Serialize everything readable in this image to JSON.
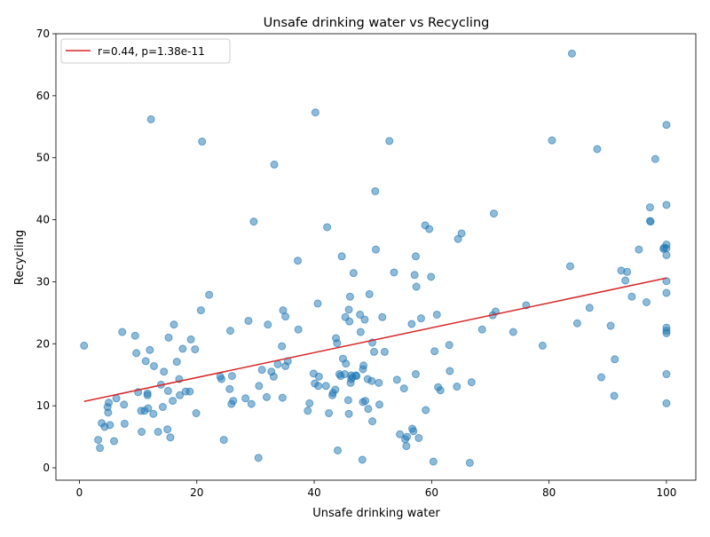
{
  "chart_data": {
    "type": "scatter",
    "title": "Unsafe drinking water vs Recycling",
    "xlabel": "Unsafe drinking water",
    "ylabel": "Recycling",
    "xlim": [
      -4,
      105
    ],
    "ylim": [
      -2,
      70
    ],
    "x_ticks": [
      0,
      20,
      40,
      60,
      80,
      100
    ],
    "y_ticks": [
      0,
      10,
      20,
      30,
      40,
      50,
      60,
      70
    ],
    "grid": false,
    "legend_position": "top-left",
    "point_color": "#1f77b4",
    "line_color": "#d62728",
    "fit_line": {
      "label": "r=0.44, p=1.38e-11",
      "x": [
        0.8,
        100
      ],
      "y": [
        10.7,
        30.6
      ]
    },
    "points": [
      [
        0.8,
        19.7
      ],
      [
        3.2,
        4.5
      ],
      [
        3.5,
        3.2
      ],
      [
        3.8,
        7.2
      ],
      [
        4.3,
        6.6
      ],
      [
        4.8,
        9.8
      ],
      [
        4.9,
        8.9
      ],
      [
        5.0,
        10.5
      ],
      [
        5.2,
        6.9
      ],
      [
        5.9,
        4.3
      ],
      [
        6.3,
        11.2
      ],
      [
        7.3,
        21.9
      ],
      [
        7.6,
        10.2
      ],
      [
        7.7,
        7.1
      ],
      [
        9.5,
        21.3
      ],
      [
        9.7,
        18.5
      ],
      [
        10.0,
        12.2
      ],
      [
        10.5,
        9.2
      ],
      [
        10.6,
        5.8
      ],
      [
        11.1,
        9.2
      ],
      [
        11.3,
        17.2
      ],
      [
        11.6,
        11.7
      ],
      [
        11.6,
        12.0
      ],
      [
        11.7,
        9.6
      ],
      [
        12.0,
        19.0
      ],
      [
        12.2,
        56.2
      ],
      [
        12.6,
        8.7
      ],
      [
        12.7,
        16.4
      ],
      [
        13.4,
        5.8
      ],
      [
        13.9,
        13.4
      ],
      [
        14.2,
        9.8
      ],
      [
        14.4,
        15.5
      ],
      [
        15.0,
        6.2
      ],
      [
        15.1,
        12.4
      ],
      [
        15.2,
        21.0
      ],
      [
        15.5,
        4.9
      ],
      [
        15.9,
        10.8
      ],
      [
        16.1,
        23.1
      ],
      [
        16.6,
        17.1
      ],
      [
        17.0,
        14.3
      ],
      [
        17.1,
        11.7
      ],
      [
        17.6,
        19.2
      ],
      [
        18.1,
        12.3
      ],
      [
        18.8,
        12.3
      ],
      [
        19.0,
        20.7
      ],
      [
        19.7,
        19.1
      ],
      [
        19.9,
        8.8
      ],
      [
        20.7,
        25.4
      ],
      [
        20.9,
        52.6
      ],
      [
        22.1,
        27.9
      ],
      [
        24.0,
        14.7
      ],
      [
        24.2,
        14.3
      ],
      [
        24.6,
        4.5
      ],
      [
        25.6,
        12.7
      ],
      [
        25.7,
        22.1
      ],
      [
        25.9,
        10.3
      ],
      [
        26.0,
        14.8
      ],
      [
        26.2,
        10.8
      ],
      [
        28.3,
        11.2
      ],
      [
        28.8,
        23.7
      ],
      [
        29.3,
        10.3
      ],
      [
        29.7,
        39.7
      ],
      [
        30.5,
        1.6
      ],
      [
        30.6,
        13.2
      ],
      [
        31.1,
        15.8
      ],
      [
        31.9,
        11.4
      ],
      [
        32.1,
        23.1
      ],
      [
        32.7,
        15.5
      ],
      [
        33.1,
        14.7
      ],
      [
        33.2,
        48.9
      ],
      [
        33.8,
        16.7
      ],
      [
        34.5,
        19.6
      ],
      [
        34.6,
        11.3
      ],
      [
        34.7,
        25.4
      ],
      [
        35.1,
        24.4
      ],
      [
        35.1,
        16.4
      ],
      [
        35.5,
        17.2
      ],
      [
        37.2,
        33.4
      ],
      [
        37.3,
        22.3
      ],
      [
        38.9,
        9.2
      ],
      [
        39.2,
        10.4
      ],
      [
        39.9,
        15.2
      ],
      [
        40.1,
        13.6
      ],
      [
        40.2,
        57.3
      ],
      [
        40.6,
        26.5
      ],
      [
        40.7,
        13.2
      ],
      [
        40.8,
        14.7
      ],
      [
        42.0,
        13.2
      ],
      [
        42.2,
        38.8
      ],
      [
        42.5,
        8.8
      ],
      [
        43.1,
        11.7
      ],
      [
        43.2,
        12.1
      ],
      [
        43.6,
        12.6
      ],
      [
        43.7,
        20.9
      ],
      [
        43.9,
        20.1
      ],
      [
        44.0,
        2.8
      ],
      [
        44.3,
        15.1
      ],
      [
        44.5,
        14.8
      ],
      [
        44.7,
        34.1
      ],
      [
        44.9,
        17.6
      ],
      [
        45.2,
        15.1
      ],
      [
        45.3,
        24.3
      ],
      [
        45.4,
        16.8
      ],
      [
        45.8,
        10.9
      ],
      [
        45.9,
        8.7
      ],
      [
        45.9,
        25.5
      ],
      [
        46.0,
        23.6
      ],
      [
        46.1,
        27.6
      ],
      [
        46.2,
        13.7
      ],
      [
        46.3,
        14.9
      ],
      [
        46.3,
        14.3
      ],
      [
        46.5,
        14.6
      ],
      [
        46.7,
        31.4
      ],
      [
        47.1,
        14.9
      ],
      [
        47.2,
        14.8
      ],
      [
        47.8,
        24.7
      ],
      [
        47.9,
        21.9
      ],
      [
        48.2,
        1.3
      ],
      [
        48.3,
        10.6
      ],
      [
        48.3,
        15.9
      ],
      [
        48.4,
        16.5
      ],
      [
        48.6,
        23.9
      ],
      [
        48.7,
        10.8
      ],
      [
        49.1,
        14.3
      ],
      [
        49.2,
        9.5
      ],
      [
        49.4,
        28.0
      ],
      [
        49.8,
        14.0
      ],
      [
        49.9,
        7.5
      ],
      [
        49.9,
        20.2
      ],
      [
        50.2,
        18.7
      ],
      [
        50.4,
        44.6
      ],
      [
        50.5,
        35.2
      ],
      [
        51.0,
        13.7
      ],
      [
        51.1,
        10.2
      ],
      [
        51.6,
        24.3
      ],
      [
        52.0,
        18.7
      ],
      [
        52.8,
        52.7
      ],
      [
        53.6,
        31.5
      ],
      [
        54.1,
        14.2
      ],
      [
        54.6,
        5.4
      ],
      [
        55.3,
        12.8
      ],
      [
        55.5,
        4.6
      ],
      [
        55.7,
        3.5
      ],
      [
        55.8,
        5.0
      ],
      [
        56.6,
        23.2
      ],
      [
        56.7,
        6.3
      ],
      [
        56.9,
        5.9
      ],
      [
        57.1,
        31.1
      ],
      [
        57.3,
        34.1
      ],
      [
        57.3,
        15.1
      ],
      [
        57.4,
        29.2
      ],
      [
        57.8,
        4.8
      ],
      [
        58.2,
        24.1
      ],
      [
        58.9,
        39.1
      ],
      [
        59.0,
        9.3
      ],
      [
        59.6,
        38.5
      ],
      [
        59.9,
        30.8
      ],
      [
        60.3,
        1.0
      ],
      [
        60.5,
        18.8
      ],
      [
        60.9,
        24.7
      ],
      [
        61.1,
        13.0
      ],
      [
        61.5,
        12.5
      ],
      [
        63.0,
        19.8
      ],
      [
        63.1,
        15.6
      ],
      [
        64.3,
        13.1
      ],
      [
        64.5,
        36.9
      ],
      [
        65.1,
        37.8
      ],
      [
        66.5,
        0.8
      ],
      [
        66.8,
        13.8
      ],
      [
        68.6,
        22.3
      ],
      [
        70.4,
        24.6
      ],
      [
        70.6,
        41.0
      ],
      [
        70.9,
        25.2
      ],
      [
        73.9,
        21.9
      ],
      [
        76.1,
        26.2
      ],
      [
        78.9,
        19.7
      ],
      [
        80.5,
        52.8
      ],
      [
        83.6,
        32.5
      ],
      [
        83.9,
        66.8
      ],
      [
        84.8,
        23.3
      ],
      [
        86.9,
        25.8
      ],
      [
        88.2,
        51.4
      ],
      [
        88.9,
        14.6
      ],
      [
        90.5,
        22.9
      ],
      [
        91.1,
        11.6
      ],
      [
        91.2,
        17.5
      ],
      [
        92.3,
        31.8
      ],
      [
        93.0,
        30.2
      ],
      [
        93.3,
        31.6
      ],
      [
        94.1,
        27.6
      ],
      [
        95.3,
        35.2
      ],
      [
        96.6,
        26.7
      ],
      [
        97.2,
        42.0
      ],
      [
        97.2,
        39.8
      ],
      [
        97.3,
        39.7
      ],
      [
        98.1,
        49.8
      ],
      [
        99.5,
        35.3
      ],
      [
        99.6,
        35.5
      ],
      [
        100.0,
        55.3
      ],
      [
        100.0,
        42.4
      ],
      [
        100.0,
        36.0
      ],
      [
        100.0,
        35.4
      ],
      [
        100.0,
        34.3
      ],
      [
        100.0,
        30.1
      ],
      [
        100.0,
        28.2
      ],
      [
        100.0,
        22.6
      ],
      [
        100.0,
        22.1
      ],
      [
        100.0,
        21.7
      ],
      [
        100.0,
        15.1
      ],
      [
        100.0,
        10.4
      ]
    ]
  }
}
